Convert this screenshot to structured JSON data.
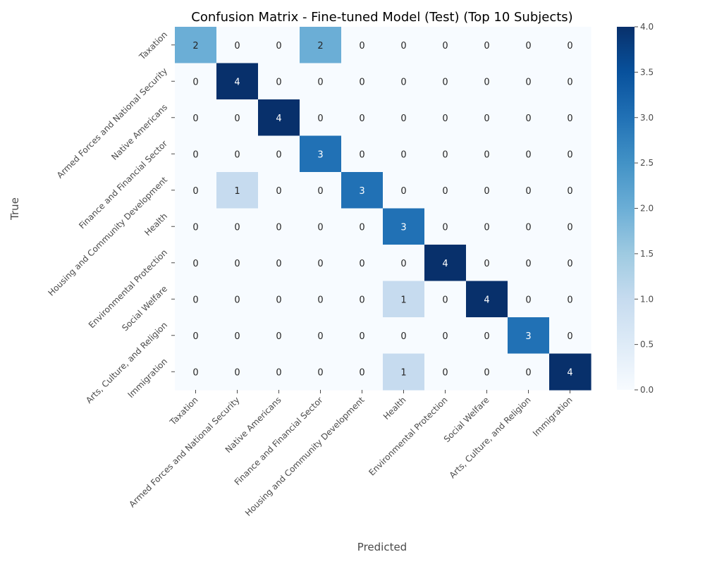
{
  "chart_data": {
    "type": "heatmap",
    "title": "Confusion Matrix - Fine-tuned Model (Test) (Top 10 Subjects)",
    "xlabel": "Predicted",
    "ylabel": "True",
    "categories": [
      "Taxation",
      "Armed Forces and National Security",
      "Native Americans",
      "Finance and Financial Sector",
      "Housing and Community Development",
      "Health",
      "Environmental Protection",
      "Social Welfare",
      "Arts, Culture, and Religion",
      "Immigration"
    ],
    "matrix": [
      [
        2,
        0,
        0,
        2,
        0,
        0,
        0,
        0,
        0,
        0
      ],
      [
        0,
        4,
        0,
        0,
        0,
        0,
        0,
        0,
        0,
        0
      ],
      [
        0,
        0,
        4,
        0,
        0,
        0,
        0,
        0,
        0,
        0
      ],
      [
        0,
        0,
        0,
        3,
        0,
        0,
        0,
        0,
        0,
        0
      ],
      [
        0,
        1,
        0,
        0,
        3,
        0,
        0,
        0,
        0,
        0
      ],
      [
        0,
        0,
        0,
        0,
        0,
        3,
        0,
        0,
        0,
        0
      ],
      [
        0,
        0,
        0,
        0,
        0,
        0,
        4,
        0,
        0,
        0
      ],
      [
        0,
        0,
        0,
        0,
        0,
        1,
        0,
        4,
        0,
        0
      ],
      [
        0,
        0,
        0,
        0,
        0,
        0,
        0,
        0,
        3,
        0
      ],
      [
        0,
        0,
        0,
        0,
        0,
        1,
        0,
        0,
        0,
        4
      ]
    ],
    "colorbar": {
      "min": 0,
      "max": 4,
      "ticks": [
        "0.0",
        "0.5",
        "1.0",
        "1.5",
        "2.0",
        "2.5",
        "3.0",
        "3.5",
        "4.0"
      ]
    },
    "colormap": "Blues",
    "colors": {
      "low": "#f7fbff",
      "high": "#08306b",
      "text_light": "#ffffff",
      "text_dark": "#262626"
    }
  }
}
